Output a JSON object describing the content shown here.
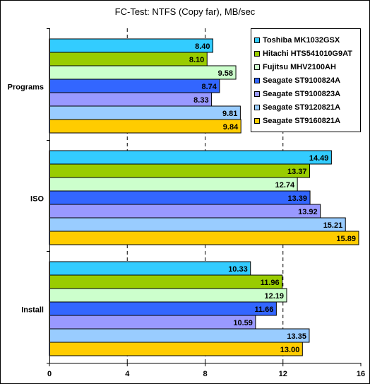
{
  "chart_data": {
    "type": "bar",
    "orientation": "horizontal",
    "title": "FC-Test: NTFS (Copy far), MB/sec",
    "categories": [
      "Programs",
      "ISO",
      "Install"
    ],
    "xlim": [
      0,
      16
    ],
    "xticks": [
      "0",
      "4",
      "8",
      "12",
      "16"
    ],
    "grid": true,
    "legend_position": "top-right",
    "series": [
      {
        "name": "Toshiba MK1032GSX",
        "color": "#33ccff",
        "values": [
          8.4,
          14.49,
          10.33
        ],
        "labels": [
          "8.40",
          "14.49",
          "10.33"
        ]
      },
      {
        "name": "Hitachi HTS541010G9AT",
        "color": "#99cc00",
        "values": [
          8.1,
          13.37,
          11.96
        ],
        "labels": [
          "8.10",
          "13.37",
          "11.96"
        ]
      },
      {
        "name": "Fujitsu MHV2100AH",
        "color": "#ccffcc",
        "values": [
          9.58,
          12.74,
          12.19
        ],
        "labels": [
          "9.58",
          "12.74",
          "12.19"
        ]
      },
      {
        "name": "Seagate ST9100824A",
        "color": "#3366ff",
        "values": [
          8.74,
          13.39,
          11.66
        ],
        "labels": [
          "8.74",
          "13.39",
          "11.66"
        ]
      },
      {
        "name": "Seagate ST9100823A",
        "color": "#9999ff",
        "values": [
          8.33,
          13.92,
          10.59
        ],
        "labels": [
          "8.33",
          "13.92",
          "10.59"
        ]
      },
      {
        "name": "Seagate ST9120821A",
        "color": "#99ccff",
        "values": [
          9.81,
          15.21,
          13.35
        ],
        "labels": [
          "9.81",
          "15.21",
          "13.35"
        ]
      },
      {
        "name": "Seagate ST9160821A",
        "color": "#ffcc00",
        "values": [
          9.84,
          15.89,
          13.0
        ],
        "labels": [
          "9.84",
          "15.89",
          "13.00"
        ]
      }
    ]
  }
}
